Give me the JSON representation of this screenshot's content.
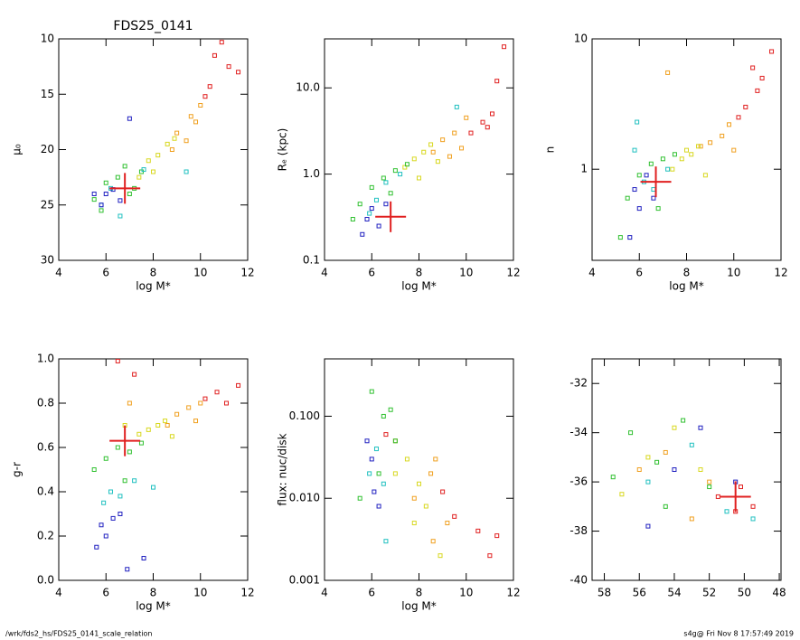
{
  "chart_data": [
    {
      "type": "scatter",
      "title": "FDS25_0141",
      "xlabel": "log M*",
      "ylabel": "μ₀",
      "xlim": [
        4,
        12
      ],
      "xticks": [
        4,
        6,
        8,
        10,
        12
      ],
      "ylim": [
        30,
        10
      ],
      "yticks": [
        10,
        15,
        20,
        25,
        30
      ],
      "series": [
        {
          "color": "#e02020",
          "x": [
            10.2,
            10.6,
            10.9,
            11.2,
            11.6,
            10.4
          ],
          "values": [
            15.2,
            11.5,
            10.3,
            12.5,
            13,
            14.3
          ]
        },
        {
          "color": "#f0a020",
          "x": [
            9,
            9.6,
            10,
            8.8,
            9.4,
            9.8
          ],
          "values": [
            18.5,
            17,
            16,
            20,
            19.2,
            17.5
          ]
        },
        {
          "color": "#d8d820",
          "x": [
            7.8,
            8.2,
            8.6,
            7.4,
            8.9,
            8.0
          ],
          "values": [
            21,
            20.5,
            19.5,
            22.5,
            19,
            22
          ]
        },
        {
          "color": "#30c030",
          "x": [
            6,
            6.5,
            7,
            7.5,
            5.5,
            6.8,
            7.2,
            5.8
          ],
          "values": [
            23,
            22.5,
            24,
            22,
            24.5,
            21.5,
            23.5,
            25.5
          ]
        },
        {
          "color": "#20c0c0",
          "x": [
            6.2,
            5.8,
            7.6,
            9.4,
            6.6
          ],
          "values": [
            23.5,
            25,
            21.8,
            22,
            26
          ]
        },
        {
          "color": "#2020c0",
          "x": [
            6,
            6.3,
            5.8,
            6.6,
            7.0,
            5.5
          ],
          "values": [
            24,
            23.6,
            25,
            24.6,
            17.2,
            24
          ]
        }
      ],
      "target": {
        "color": "#e02020",
        "x": 6.8,
        "y": 23.5
      }
    },
    {
      "type": "scatter",
      "xlabel": "log M*",
      "ylabel": "Rₑ (kpc)",
      "yscale": "log",
      "xlim": [
        4,
        12
      ],
      "xticks": [
        4,
        6,
        8,
        10,
        12
      ],
      "ylim": [
        0.1,
        37
      ],
      "yticks": [
        0.1,
        {
          "value": 1,
          "label": "1.0"
        },
        {
          "value": 10,
          "label": "10.0"
        }
      ],
      "series": [
        {
          "color": "#e02020",
          "x": [
            10.2,
            10.7,
            11.1,
            11.6,
            11.3,
            10.9
          ],
          "values": [
            3,
            4,
            5,
            30,
            12,
            3.5
          ]
        },
        {
          "color": "#f0a020",
          "x": [
            9,
            9.5,
            9.8,
            10,
            8.6,
            9.3
          ],
          "values": [
            2.5,
            3,
            2,
            4.5,
            1.8,
            1.6
          ]
        },
        {
          "color": "#d8d820",
          "x": [
            7.8,
            8.2,
            8.5,
            7.4,
            8.8,
            8
          ],
          "values": [
            1.5,
            1.8,
            2.2,
            1.2,
            1.4,
            0.9
          ]
        },
        {
          "color": "#30c030",
          "x": [
            6,
            6.5,
            7,
            7.5,
            5.5,
            6.8,
            5.2
          ],
          "values": [
            0.7,
            0.9,
            1.1,
            1.3,
            0.45,
            0.6,
            0.3
          ]
        },
        {
          "color": "#20c0c0",
          "x": [
            6.2,
            5.9,
            7.2,
            9.6,
            6.6
          ],
          "values": [
            0.5,
            0.35,
            1.0,
            6,
            0.8
          ]
        },
        {
          "color": "#2020c0",
          "x": [
            5.8,
            6.0,
            6.3,
            5.6,
            6.6
          ],
          "values": [
            0.3,
            0.4,
            0.25,
            0.2,
            0.45
          ]
        }
      ],
      "target": {
        "color": "#e02020",
        "x": 6.8,
        "y": 0.32
      }
    },
    {
      "type": "scatter",
      "xlabel": "log M*",
      "ylabel": "n",
      "yscale": "log",
      "xlim": [
        4,
        12
      ],
      "xticks": [
        4,
        6,
        8,
        10,
        12
      ],
      "ylim": [
        0.2,
        10
      ],
      "yticks": [
        1,
        10
      ],
      "series": [
        {
          "color": "#e02020",
          "x": [
            10.5,
            11,
            11.2,
            11.6,
            10.2,
            10.8
          ],
          "values": [
            3,
            4,
            5,
            8,
            2.5,
            6
          ]
        },
        {
          "color": "#f0a020",
          "x": [
            9,
            9.5,
            9.8,
            10,
            8.6,
            7.2
          ],
          "values": [
            1.6,
            1.8,
            2.2,
            1.4,
            1.5,
            5.5
          ]
        },
        {
          "color": "#d8d820",
          "x": [
            7.8,
            8.2,
            8.5,
            7.4,
            8.8,
            8
          ],
          "values": [
            1.2,
            1.3,
            1.5,
            1,
            0.9,
            1.4
          ]
        },
        {
          "color": "#30c030",
          "x": [
            6,
            6.5,
            7,
            7.5,
            5.5,
            5.2,
            6.8
          ],
          "values": [
            0.9,
            1.1,
            1.2,
            1.3,
            0.6,
            0.3,
            0.5
          ]
        },
        {
          "color": "#20c0c0",
          "x": [
            6.2,
            5.9,
            7.2,
            6.6,
            5.8
          ],
          "values": [
            0.8,
            2.3,
            1.0,
            0.7,
            1.4
          ]
        },
        {
          "color": "#2020c0",
          "x": [
            5.8,
            6.0,
            6.3,
            5.6,
            6.6
          ],
          "values": [
            0.7,
            0.5,
            0.9,
            0.3,
            0.6
          ]
        }
      ],
      "target": {
        "color": "#e02020",
        "x": 6.7,
        "y": 0.8
      }
    },
    {
      "type": "scatter",
      "xlabel": "log M*",
      "ylabel": "g-r",
      "xlim": [
        4,
        12
      ],
      "xticks": [
        4,
        6,
        8,
        10,
        12
      ],
      "ylim": [
        0,
        1
      ],
      "yticks": [
        {
          "value": 0,
          "label": "0.0"
        },
        0.2,
        0.4,
        0.6,
        0.8,
        {
          "value": 1,
          "label": "1.0"
        }
      ],
      "series": [
        {
          "color": "#e02020",
          "x": [
            10.2,
            10.7,
            11.1,
            11.6,
            6.5,
            7.2
          ],
          "values": [
            0.82,
            0.85,
            0.8,
            0.88,
            0.99,
            0.93
          ]
        },
        {
          "color": "#f0a020",
          "x": [
            9,
            9.5,
            9.8,
            10,
            8.6,
            7
          ],
          "values": [
            0.75,
            0.78,
            0.72,
            0.8,
            0.7,
            0.8
          ]
        },
        {
          "color": "#d8d820",
          "x": [
            7.8,
            8.2,
            8.5,
            7.4,
            8.8,
            6.8
          ],
          "values": [
            0.68,
            0.7,
            0.72,
            0.66,
            0.65,
            0.7
          ]
        },
        {
          "color": "#30c030",
          "x": [
            6,
            6.5,
            7,
            7.5,
            5.5,
            6.8
          ],
          "values": [
            0.55,
            0.6,
            0.58,
            0.62,
            0.5,
            0.45
          ]
        },
        {
          "color": "#20c0c0",
          "x": [
            6.2,
            5.9,
            7.2,
            6.6,
            8.0
          ],
          "values": [
            0.4,
            0.35,
            0.45,
            0.38,
            0.42
          ]
        },
        {
          "color": "#2020c0",
          "x": [
            5.8,
            6.0,
            6.3,
            5.6,
            6.6,
            7.6,
            6.9
          ],
          "values": [
            0.25,
            0.2,
            0.28,
            0.15,
            0.3,
            0.1,
            0.05
          ]
        }
      ],
      "target": {
        "color": "#e02020",
        "x": 6.8,
        "y": 0.63
      }
    },
    {
      "type": "scatter",
      "xlabel": "log M*",
      "ylabel": "flux: nuc/disk",
      "yscale": "log",
      "xlim": [
        4,
        12
      ],
      "xticks": [
        4,
        6,
        8,
        10,
        12
      ],
      "ylim": [
        0.001,
        0.5
      ],
      "yticks": [
        0.001,
        {
          "value": 0.01,
          "label": "0.010"
        },
        {
          "value": 0.1,
          "label": "0.100"
        }
      ],
      "series": [
        {
          "color": "#e02020",
          "x": [
            9,
            9.5,
            10.5,
            11,
            11.3,
            6.6
          ],
          "values": [
            0.012,
            0.006,
            0.004,
            0.002,
            0.0035,
            0.06
          ]
        },
        {
          "color": "#f0a020",
          "x": [
            8.5,
            7.8,
            9.2,
            8.7,
            7,
            8.6
          ],
          "values": [
            0.02,
            0.01,
            0.005,
            0.03,
            0.05,
            0.003
          ]
        },
        {
          "color": "#d8d820",
          "x": [
            7.5,
            8,
            8.3,
            7.8,
            8.9,
            7
          ],
          "values": [
            0.03,
            0.015,
            0.008,
            0.005,
            0.002,
            0.02
          ]
        },
        {
          "color": "#30c030",
          "x": [
            6,
            6.5,
            7,
            6.3,
            5.5,
            6.8
          ],
          "values": [
            0.2,
            0.1,
            0.05,
            0.02,
            0.01,
            0.12
          ]
        },
        {
          "color": "#20c0c0",
          "x": [
            6.2,
            5.9,
            6.5,
            6.6
          ],
          "values": [
            0.04,
            0.02,
            0.015,
            0.003
          ]
        },
        {
          "color": "#2020c0",
          "x": [
            5.8,
            6.0,
            6.3,
            6.1
          ],
          "values": [
            0.05,
            0.03,
            0.008,
            0.012
          ]
        }
      ]
    },
    {
      "type": "scatter",
      "xlim": [
        58.7,
        47.9
      ],
      "xticks": [
        58,
        56,
        54,
        52,
        50,
        48
      ],
      "ylim": [
        -40,
        -31
      ],
      "yticks": [
        -40,
        -38,
        -36,
        -34,
        -32
      ],
      "series": [
        {
          "color": "#e02020",
          "x": [
            50.5,
            49.5,
            50.2,
            51.5
          ],
          "values": [
            -37.2,
            -37,
            -36.2,
            -36.6
          ]
        },
        {
          "color": "#f0a020",
          "x": [
            56,
            54.5,
            52,
            53
          ],
          "values": [
            -35.5,
            -34.8,
            -36,
            -37.5
          ]
        },
        {
          "color": "#d8d820",
          "x": [
            57,
            55.5,
            54,
            52.5
          ],
          "values": [
            -36.5,
            -35,
            -33.8,
            -35.5
          ]
        },
        {
          "color": "#30c030",
          "x": [
            56.5,
            55,
            53.5,
            52,
            54.5,
            57.5
          ],
          "values": [
            -34,
            -35.2,
            -33.5,
            -36.2,
            -37,
            -35.8
          ]
        },
        {
          "color": "#20c0c0",
          "x": [
            55.5,
            53,
            51,
            49.5
          ],
          "values": [
            -36,
            -34.5,
            -37.2,
            -37.5
          ]
        },
        {
          "color": "#2020c0",
          "x": [
            54,
            52.5,
            50.5,
            55.5
          ],
          "values": [
            -35.5,
            -33.8,
            -36,
            -37.8
          ]
        }
      ],
      "target": {
        "color": "#e02020",
        "x": 50.5,
        "y": -36.6
      }
    }
  ],
  "footer": {
    "path": "/wrk/fds2_hs/FDS25_0141_scale_relation",
    "stamp": "s4g@  Fri Nov  8 17:57:49 2019"
  }
}
